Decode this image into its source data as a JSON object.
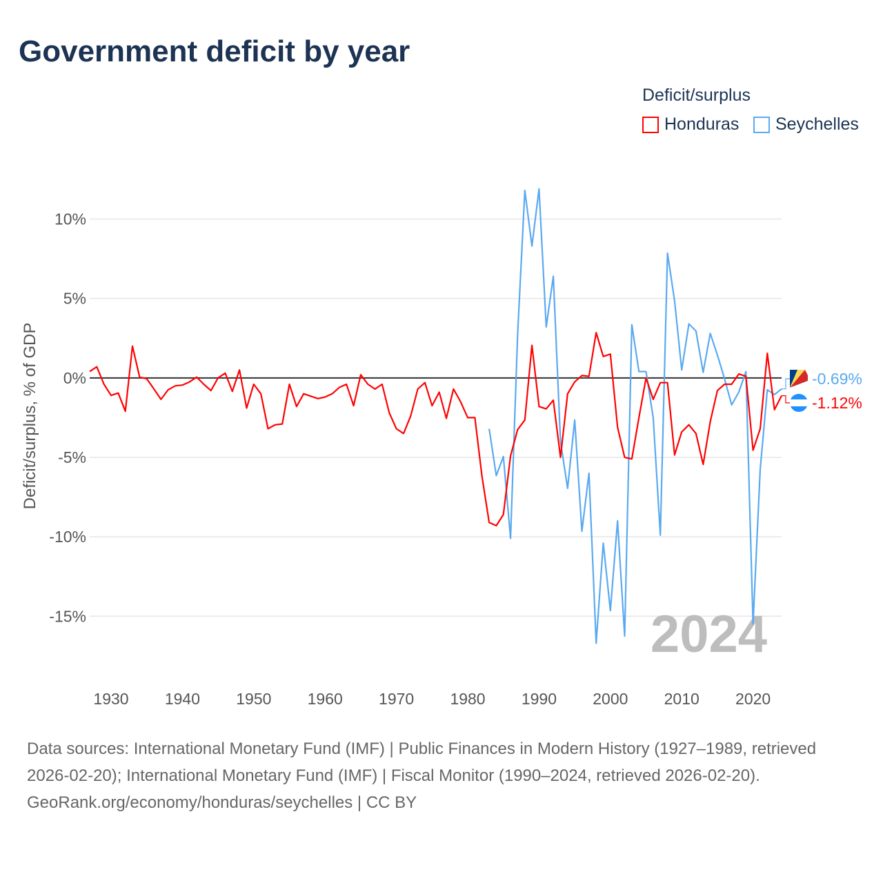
{
  "title": "Government deficit by year",
  "colors": {
    "honduras": "#ff0000",
    "seychelles": "#5aa9f0",
    "grid": "#e6e6e6",
    "zero": "#333333",
    "watermark": "#bdbdbd"
  },
  "chart_data": {
    "type": "line",
    "title": "Government deficit by year",
    "xlabel": "",
    "ylabel": "Deficit/surplus, % of GDP",
    "legend_title": "Deficit/surplus",
    "legend_position": "top-right",
    "watermark_year": "2024",
    "xlim": [
      1927,
      2024
    ],
    "ylim": [
      -19.2,
      13.8
    ],
    "x_ticks": [
      1930,
      1940,
      1950,
      1960,
      1970,
      1980,
      1990,
      2000,
      2010,
      2020
    ],
    "x_tick_labels": [
      "1930",
      "1940",
      "1950",
      "1960",
      "1970",
      "1980",
      "1990",
      "2000",
      "2010",
      "2020"
    ],
    "y_ticks": [
      10,
      5,
      0,
      -5,
      -10,
      -15
    ],
    "y_tick_labels": [
      "10%",
      "5%",
      "0%",
      "-5%",
      "-10%",
      "-15%"
    ],
    "grid": true,
    "series": [
      {
        "name": "Honduras",
        "start_year": 1927,
        "end_label": "-1.12%",
        "values": [
          0.4,
          0.7,
          -0.4,
          -1.1,
          -0.95,
          -2.1,
          2.0,
          0.05,
          -0.05,
          -0.7,
          -1.35,
          -0.75,
          -0.5,
          -0.45,
          -0.25,
          0.05,
          -0.4,
          -0.8,
          0,
          0.3,
          -0.85,
          0.5,
          -1.9,
          -0.4,
          -1.0,
          -3.2,
          -2.95,
          -2.9,
          -0.4,
          -1.8,
          -1.0,
          -1.15,
          -1.3,
          -1.2,
          -1.0,
          -0.6,
          -0.4,
          -1.75,
          0.2,
          -0.4,
          -0.7,
          -0.4,
          -2.2,
          -3.2,
          -3.5,
          -2.4,
          -0.7,
          -0.3,
          -1.75,
          -0.9,
          -2.55,
          -0.7,
          -1.5,
          -2.5,
          -2.5,
          -6.2,
          -9.1,
          -9.3,
          -8.6,
          -4.9,
          -3.25,
          -2.65,
          2.05,
          -1.8,
          -1.95,
          -1.4,
          -5.0,
          -1.0,
          -0.25,
          0.15,
          0.1,
          2.85,
          1.35,
          1.5,
          -3.1,
          -5.0,
          -5.1,
          -2.5,
          0,
          -1.35,
          -0.3,
          -0.3,
          -4.85,
          -3.4,
          -2.95,
          -3.5,
          -5.45,
          -2.75,
          -0.8,
          -0.4,
          -0.4,
          0.25,
          0.1,
          -4.55,
          -3.2,
          1.55,
          -2.0,
          -1.12
        ]
      },
      {
        "name": "Seychelles",
        "start_year": 1983,
        "end_label": "-0.69%",
        "values": [
          -3.2,
          -6.15,
          -4.95,
          -10.1,
          2.8,
          11.8,
          8.3,
          11.9,
          3.2,
          6.4,
          -4.0,
          -6.95,
          -2.65,
          -9.65,
          -6.0,
          -16.7,
          -10.4,
          -14.65,
          -9.0,
          -16.25,
          3.35,
          0.4,
          0.4,
          -2.5,
          -9.9,
          7.85,
          4.85,
          0.5,
          3.4,
          2.95,
          0.35,
          2.8,
          1.45,
          -0.05,
          -1.7,
          -0.9,
          0.4,
          -15.5,
          -5.75,
          -0.75,
          -1.05,
          -0.69
        ]
      }
    ]
  },
  "footer": {
    "sources": "Data sources: International Monetary Fund (IMF) | Public Finances in Modern History (1927–1989, retrieved 2026-02-20); International Monetary Fund (IMF) | Fiscal Monitor (1990–2024, retrieved 2026-02-20).",
    "credit": "GeoRank.org/economy/honduras/seychelles | CC BY"
  }
}
